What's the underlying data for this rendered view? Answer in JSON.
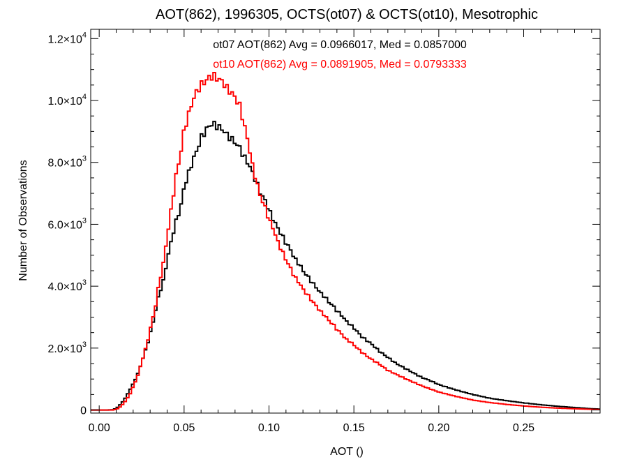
{
  "chart_data": {
    "type": "line",
    "title": "AOT(862), 1996305, OCTS(ot07) & OCTS(ot10), Mesotrophic",
    "xlabel": "AOT ()",
    "ylabel": "Number of Observations",
    "xlim": [
      -0.005,
      0.295
    ],
    "ylim": [
      -100,
      12300
    ],
    "x_ticks": [
      {
        "value": 0.0,
        "label": "0.00"
      },
      {
        "value": 0.05,
        "label": "0.05"
      },
      {
        "value": 0.1,
        "label": "0.10"
      },
      {
        "value": 0.15,
        "label": "0.15"
      },
      {
        "value": 0.2,
        "label": "0.20"
      },
      {
        "value": 0.25,
        "label": "0.25"
      }
    ],
    "y_ticks": [
      {
        "value": 0,
        "mant": "0",
        "exp": ""
      },
      {
        "value": 2000,
        "mant": "2.0×10",
        "exp": "3"
      },
      {
        "value": 4000,
        "mant": "4.0×10",
        "exp": "3"
      },
      {
        "value": 6000,
        "mant": "6.0×10",
        "exp": "3"
      },
      {
        "value": 8000,
        "mant": "8.0×10",
        "exp": "3"
      },
      {
        "value": 10000,
        "mant": "1.0×10",
        "exp": "4"
      },
      {
        "value": 12000,
        "mant": "1.2×10",
        "exp": "4"
      }
    ],
    "series": [
      {
        "color": "#000000",
        "annotation": "ot07 AOT(862) Avg = 0.0966017, Med = 0.0857000",
        "points": [
          [
            0.0,
            0
          ],
          [
            0.005,
            0
          ],
          [
            0.008,
            10
          ],
          [
            0.01,
            50
          ],
          [
            0.012,
            150
          ],
          [
            0.015,
            350
          ],
          [
            0.018,
            650
          ],
          [
            0.02,
            850
          ],
          [
            0.023,
            1200
          ],
          [
            0.025,
            1550
          ],
          [
            0.028,
            2050
          ],
          [
            0.03,
            2450
          ],
          [
            0.033,
            3150
          ],
          [
            0.035,
            3700
          ],
          [
            0.038,
            4200
          ],
          [
            0.04,
            4850
          ],
          [
            0.043,
            5600
          ],
          [
            0.045,
            6050
          ],
          [
            0.048,
            6550
          ],
          [
            0.05,
            7200
          ],
          [
            0.053,
            7700
          ],
          [
            0.055,
            8050
          ],
          [
            0.058,
            8450
          ],
          [
            0.06,
            8800
          ],
          [
            0.063,
            9050
          ],
          [
            0.065,
            9200
          ],
          [
            0.067,
            9250
          ],
          [
            0.07,
            9150
          ],
          [
            0.073,
            9050
          ],
          [
            0.075,
            8900
          ],
          [
            0.078,
            8750
          ],
          [
            0.08,
            8650
          ],
          [
            0.083,
            8450
          ],
          [
            0.085,
            8200
          ],
          [
            0.088,
            7950
          ],
          [
            0.09,
            7700
          ],
          [
            0.093,
            7300
          ],
          [
            0.095,
            7000
          ],
          [
            0.098,
            6750
          ],
          [
            0.1,
            6450
          ],
          [
            0.103,
            6100
          ],
          [
            0.105,
            5900
          ],
          [
            0.108,
            5600
          ],
          [
            0.11,
            5400
          ],
          [
            0.113,
            5150
          ],
          [
            0.115,
            4900
          ],
          [
            0.118,
            4700
          ],
          [
            0.12,
            4500
          ],
          [
            0.123,
            4300
          ],
          [
            0.125,
            4150
          ],
          [
            0.128,
            3950
          ],
          [
            0.13,
            3800
          ],
          [
            0.133,
            3650
          ],
          [
            0.135,
            3500
          ],
          [
            0.138,
            3350
          ],
          [
            0.14,
            3200
          ],
          [
            0.143,
            3050
          ],
          [
            0.145,
            2900
          ],
          [
            0.148,
            2750
          ],
          [
            0.15,
            2650
          ],
          [
            0.155,
            2350
          ],
          [
            0.16,
            2150
          ],
          [
            0.165,
            1900
          ],
          [
            0.17,
            1700
          ],
          [
            0.175,
            1500
          ],
          [
            0.18,
            1350
          ],
          [
            0.185,
            1200
          ],
          [
            0.19,
            1050
          ],
          [
            0.195,
            950
          ],
          [
            0.2,
            820
          ],
          [
            0.21,
            650
          ],
          [
            0.22,
            500
          ],
          [
            0.23,
            380
          ],
          [
            0.24,
            300
          ],
          [
            0.25,
            230
          ],
          [
            0.26,
            170
          ],
          [
            0.27,
            120
          ],
          [
            0.28,
            80
          ],
          [
            0.29,
            40
          ],
          [
            0.295,
            30
          ]
        ]
      },
      {
        "color": "#ff0000",
        "annotation": "ot10 AOT(862) Avg = 0.0891905, Med = 0.0793333",
        "points": [
          [
            0.0,
            0
          ],
          [
            0.008,
            0
          ],
          [
            0.01,
            20
          ],
          [
            0.012,
            80
          ],
          [
            0.015,
            250
          ],
          [
            0.018,
            500
          ],
          [
            0.02,
            750
          ],
          [
            0.023,
            1150
          ],
          [
            0.025,
            1550
          ],
          [
            0.028,
            2100
          ],
          [
            0.03,
            2600
          ],
          [
            0.033,
            3300
          ],
          [
            0.035,
            4000
          ],
          [
            0.038,
            4800
          ],
          [
            0.04,
            5600
          ],
          [
            0.043,
            6700
          ],
          [
            0.045,
            7500
          ],
          [
            0.048,
            8300
          ],
          [
            0.05,
            9050
          ],
          [
            0.053,
            9600
          ],
          [
            0.055,
            10000
          ],
          [
            0.058,
            10350
          ],
          [
            0.06,
            10500
          ],
          [
            0.063,
            10650
          ],
          [
            0.065,
            10750
          ],
          [
            0.067,
            10800
          ],
          [
            0.07,
            10700
          ],
          [
            0.073,
            10600
          ],
          [
            0.075,
            10400
          ],
          [
            0.078,
            10250
          ],
          [
            0.08,
            10100
          ],
          [
            0.083,
            9800
          ],
          [
            0.085,
            9300
          ],
          [
            0.088,
            8600
          ],
          [
            0.09,
            7950
          ],
          [
            0.093,
            7300
          ],
          [
            0.095,
            6900
          ],
          [
            0.098,
            6500
          ],
          [
            0.1,
            6150
          ],
          [
            0.103,
            5800
          ],
          [
            0.105,
            5450
          ],
          [
            0.108,
            5100
          ],
          [
            0.11,
            4850
          ],
          [
            0.113,
            4550
          ],
          [
            0.115,
            4300
          ],
          [
            0.118,
            4100
          ],
          [
            0.12,
            3900
          ],
          [
            0.123,
            3700
          ],
          [
            0.125,
            3550
          ],
          [
            0.128,
            3350
          ],
          [
            0.13,
            3200
          ],
          [
            0.133,
            3050
          ],
          [
            0.135,
            2900
          ],
          [
            0.138,
            2750
          ],
          [
            0.14,
            2600
          ],
          [
            0.143,
            2450
          ],
          [
            0.145,
            2300
          ],
          [
            0.148,
            2200
          ],
          [
            0.15,
            2100
          ],
          [
            0.155,
            1850
          ],
          [
            0.16,
            1650
          ],
          [
            0.165,
            1480
          ],
          [
            0.17,
            1280
          ],
          [
            0.175,
            1150
          ],
          [
            0.18,
            1020
          ],
          [
            0.185,
            900
          ],
          [
            0.19,
            780
          ],
          [
            0.195,
            680
          ],
          [
            0.2,
            580
          ],
          [
            0.21,
            440
          ],
          [
            0.22,
            320
          ],
          [
            0.23,
            240
          ],
          [
            0.24,
            180
          ],
          [
            0.25,
            130
          ],
          [
            0.26,
            90
          ],
          [
            0.27,
            60
          ],
          [
            0.28,
            40
          ],
          [
            0.29,
            20
          ],
          [
            0.295,
            15
          ]
        ]
      }
    ],
    "grid": false,
    "legend": "annotations top-center"
  }
}
